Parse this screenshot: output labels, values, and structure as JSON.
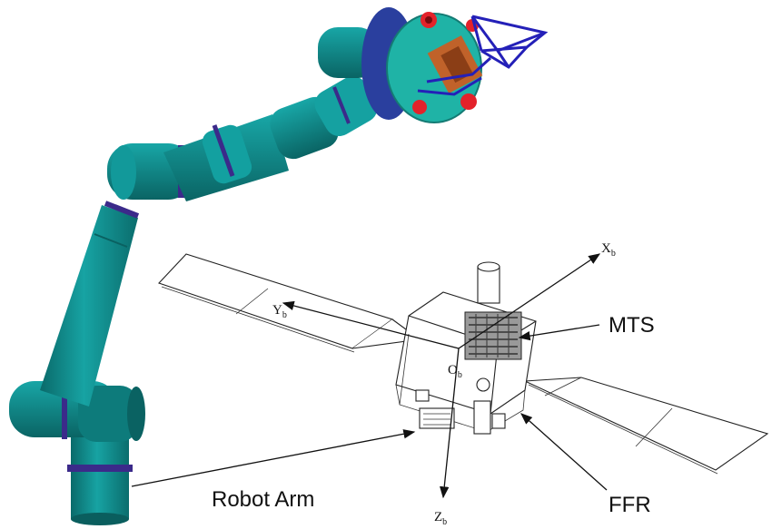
{
  "labels": {
    "robot_arm": "Robot Arm",
    "mts": "MTS",
    "ffr": "FFR",
    "x_axis": "X",
    "x_sub": "b",
    "y_axis": "Y",
    "y_sub": "b",
    "z_axis": "Z",
    "z_sub": "b",
    "origin": "O",
    "origin_sub": "b"
  },
  "colors": {
    "arm_body": "#0f8c8c",
    "arm_dark": "#0a6666",
    "arm_joint_ring": "#3b2a8a",
    "end_effector_plate": "#1fb3a6",
    "end_effector_disc": "#2a3f9e",
    "gripper_frame": "#2420b8",
    "gripper_block": "#c0622a",
    "gripper_red": "#e3222a"
  }
}
